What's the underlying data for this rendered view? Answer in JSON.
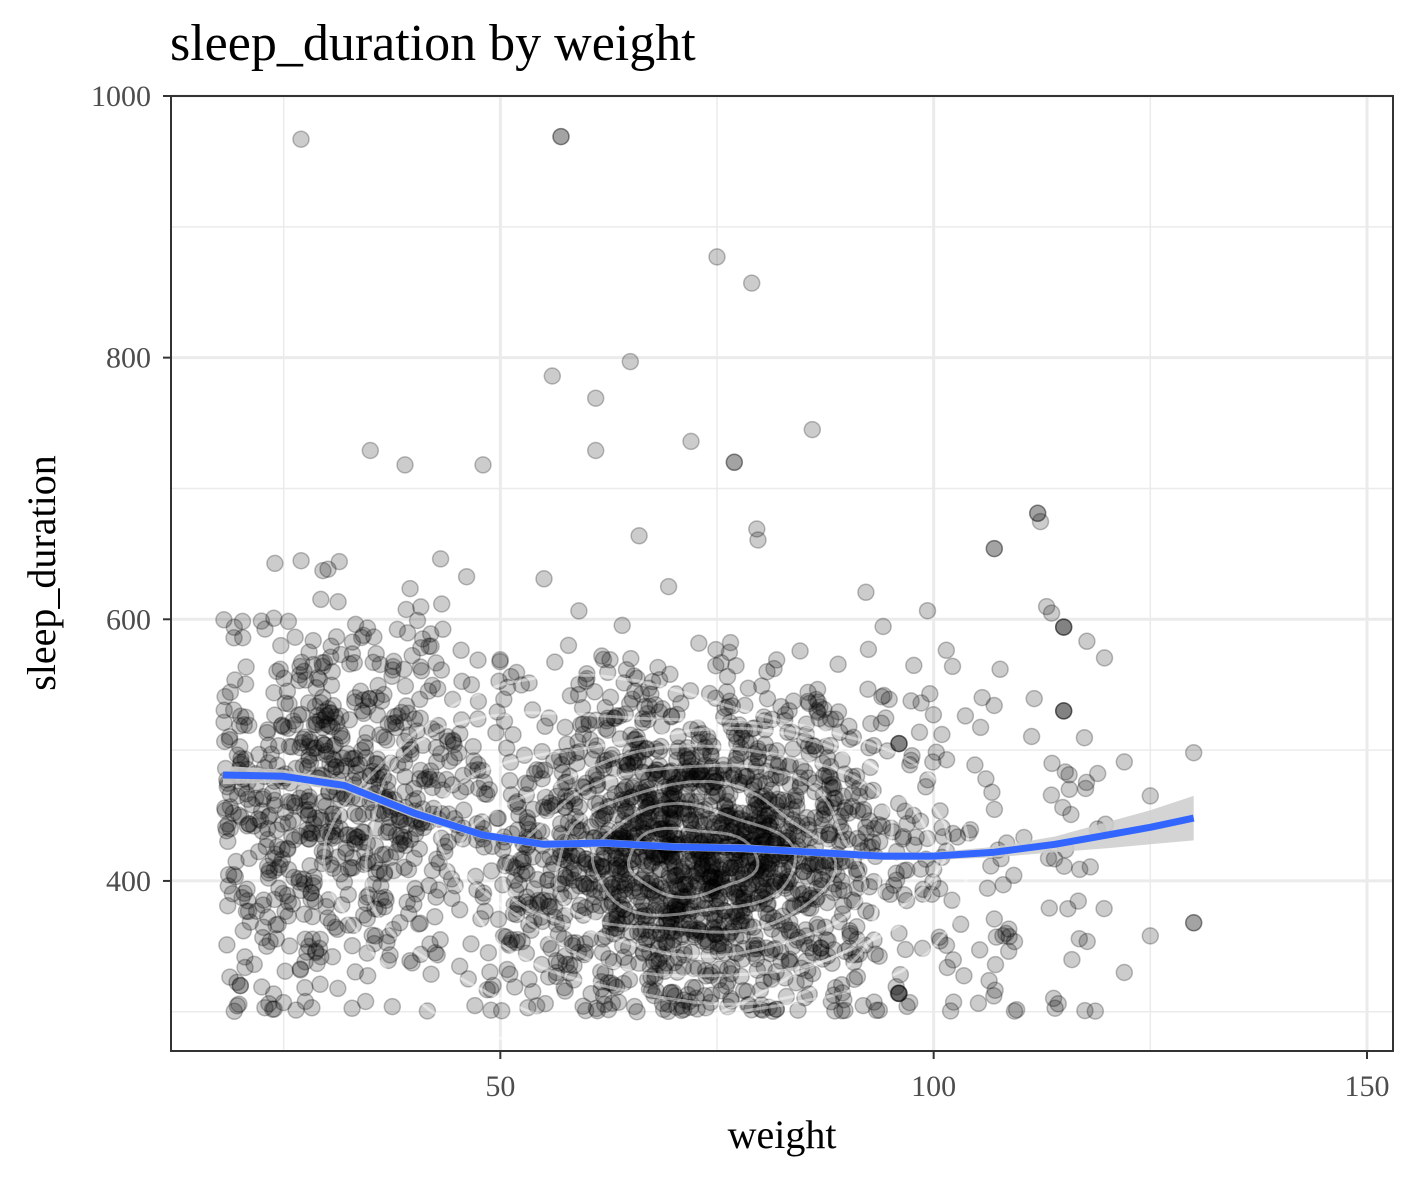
{
  "chart_data": {
    "type": "scatter",
    "title": "sleep_duration by weight",
    "xlabel": "weight",
    "ylabel": "sleep_duration",
    "xlim": [
      12,
      153
    ],
    "ylim": [
      270,
      1000
    ],
    "x_ticks": [
      50,
      100,
      150
    ],
    "x_tick_labels": [
      "50",
      "100",
      "150"
    ],
    "y_ticks": [
      400,
      600,
      800,
      1000
    ],
    "y_tick_labels": [
      "400",
      "600",
      "800",
      "1000"
    ],
    "grid": true,
    "legend": "none",
    "points": {
      "color": "#000000",
      "alpha": 0.2,
      "approx_count": 2600,
      "x_range": [
        18,
        130
      ],
      "y_range": [
        300,
        970
      ],
      "density_peak": {
        "x": 72,
        "y": 410
      },
      "outliers": [
        {
          "x": 27,
          "y": 967
        },
        {
          "x": 57,
          "y": 969
        },
        {
          "x": 57,
          "y": 969
        },
        {
          "x": 75,
          "y": 877
        },
        {
          "x": 79,
          "y": 857
        },
        {
          "x": 65,
          "y": 797
        },
        {
          "x": 56,
          "y": 786
        },
        {
          "x": 61,
          "y": 769
        },
        {
          "x": 86,
          "y": 745
        },
        {
          "x": 72,
          "y": 736
        },
        {
          "x": 35,
          "y": 729
        },
        {
          "x": 48,
          "y": 718
        },
        {
          "x": 39,
          "y": 718
        },
        {
          "x": 61,
          "y": 729
        },
        {
          "x": 77,
          "y": 720
        },
        {
          "x": 77,
          "y": 720
        },
        {
          "x": 112,
          "y": 681
        },
        {
          "x": 112,
          "y": 681
        },
        {
          "x": 107,
          "y": 654
        },
        {
          "x": 107,
          "y": 654
        },
        {
          "x": 115,
          "y": 594
        },
        {
          "x": 115,
          "y": 594
        },
        {
          "x": 115,
          "y": 594
        },
        {
          "x": 115,
          "y": 530
        },
        {
          "x": 115,
          "y": 530
        },
        {
          "x": 115,
          "y": 530
        },
        {
          "x": 96,
          "y": 505
        },
        {
          "x": 96,
          "y": 505
        },
        {
          "x": 96,
          "y": 505
        },
        {
          "x": 96,
          "y": 314
        },
        {
          "x": 96,
          "y": 314
        },
        {
          "x": 96,
          "y": 314
        },
        {
          "x": 20,
          "y": 320
        },
        {
          "x": 20,
          "y": 320
        },
        {
          "x": 130,
          "y": 368
        },
        {
          "x": 130,
          "y": 368
        },
        {
          "x": 130,
          "y": 498
        },
        {
          "x": 122,
          "y": 491
        },
        {
          "x": 125,
          "y": 465
        },
        {
          "x": 125,
          "y": 358
        },
        {
          "x": 122,
          "y": 330
        }
      ]
    },
    "smooth": {
      "color": "#3366ff",
      "se_fill": "#cccccc",
      "x": [
        18,
        25,
        32,
        40,
        48,
        55,
        62,
        70,
        78,
        86,
        94,
        100,
        107,
        114,
        120,
        125,
        130
      ],
      "y": [
        481,
        480,
        473,
        452,
        435,
        428,
        429,
        426,
        425,
        422,
        419,
        419,
        422,
        428,
        435,
        441,
        448
      ],
      "se_halfwidth": [
        7,
        5,
        4,
        4,
        3,
        3,
        3,
        3,
        3,
        3,
        3,
        3,
        4,
        6,
        10,
        13,
        17
      ]
    },
    "density_contours": {
      "color": "#ffffff",
      "alpha": 0.45,
      "levels": 8
    }
  }
}
